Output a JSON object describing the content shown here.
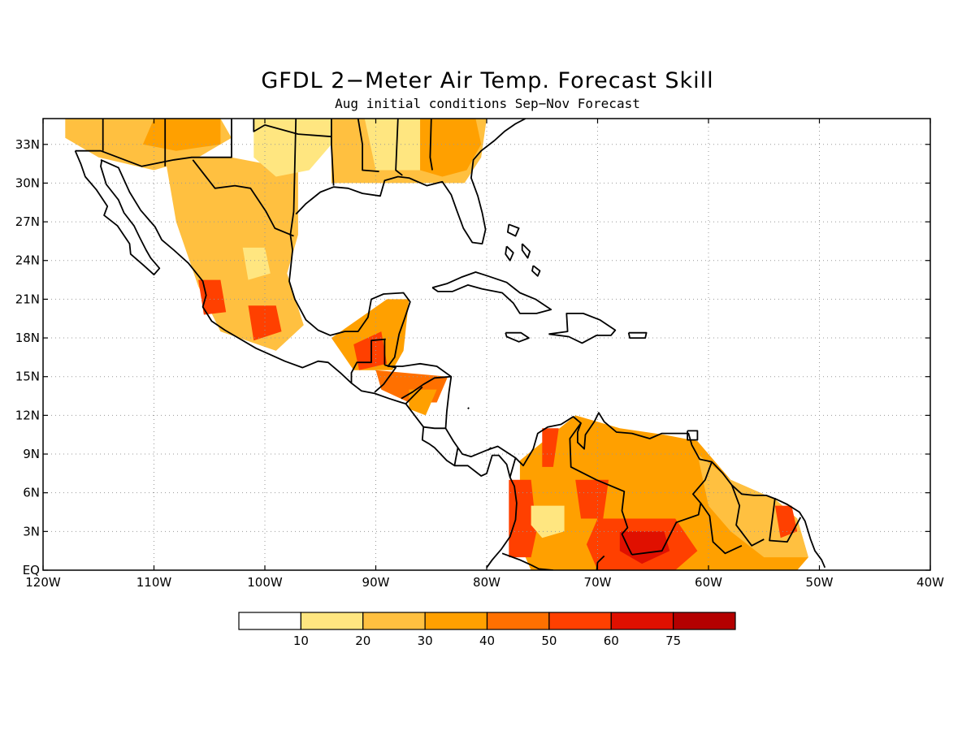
{
  "title": "GFDL 2−Meter Air Temp. Forecast Skill",
  "subtitle": "Aug initial conditions  Sep−Nov Forecast",
  "map": {
    "lon_range": [
      -120,
      -40
    ],
    "lat_range": [
      0,
      35
    ],
    "lon_ticks": [
      {
        "value": -120,
        "label": "120W"
      },
      {
        "value": -110,
        "label": "110W"
      },
      {
        "value": -100,
        "label": "100W"
      },
      {
        "value": -90,
        "label": "90W"
      },
      {
        "value": -80,
        "label": "80W"
      },
      {
        "value": -70,
        "label": "70W"
      },
      {
        "value": -60,
        "label": "60W"
      },
      {
        "value": -50,
        "label": "50W"
      },
      {
        "value": -40,
        "label": "40W"
      }
    ],
    "lat_ticks": [
      {
        "value": 0,
        "label": "EQ"
      },
      {
        "value": 3,
        "label": "3N"
      },
      {
        "value": 6,
        "label": "6N"
      },
      {
        "value": 9,
        "label": "9N"
      },
      {
        "value": 12,
        "label": "12N"
      },
      {
        "value": 15,
        "label": "15N"
      },
      {
        "value": 18,
        "label": "18N"
      },
      {
        "value": 21,
        "label": "21N"
      },
      {
        "value": 24,
        "label": "24N"
      },
      {
        "value": 27,
        "label": "27N"
      },
      {
        "value": 30,
        "label": "30N"
      },
      {
        "value": 33,
        "label": "33N"
      }
    ],
    "grid": "dotted"
  },
  "legend": {
    "labels": [
      "10",
      "20",
      "30",
      "40",
      "50",
      "60",
      "75"
    ],
    "colors": [
      "#ffffff",
      "#ffe680",
      "#ffc040",
      "#ffa000",
      "#ff7000",
      "#ff4000",
      "#e01000",
      "#b40000"
    ]
  },
  "skill_regions": [
    {
      "level": 2,
      "points": [
        [
          -118,
          35
        ],
        [
          -104,
          35
        ],
        [
          -103,
          33.5
        ],
        [
          -106,
          32
        ],
        [
          -110,
          31
        ],
        [
          -115,
          32
        ],
        [
          -118,
          33.5
        ]
      ]
    },
    {
      "level": 3,
      "points": [
        [
          -110,
          35
        ],
        [
          -104,
          35
        ],
        [
          -104,
          33
        ],
        [
          -108,
          32.5
        ],
        [
          -111,
          33
        ]
      ]
    },
    {
      "level": 2,
      "points": [
        [
          -109,
          32
        ],
        [
          -103,
          32
        ],
        [
          -97,
          31
        ],
        [
          -97,
          26
        ],
        [
          -98,
          23
        ],
        [
          -96.5,
          19
        ],
        [
          -99,
          17
        ],
        [
          -104,
          18.5
        ],
        [
          -106,
          22
        ],
        [
          -108,
          27
        ]
      ]
    },
    {
      "level": 1,
      "points": [
        [
          -102,
          25
        ],
        [
          -100,
          25
        ],
        [
          -99.5,
          23
        ],
        [
          -101.5,
          22.5
        ]
      ]
    },
    {
      "level": 5,
      "points": [
        [
          -106,
          22.5
        ],
        [
          -104,
          22.5
        ],
        [
          -103.5,
          20
        ],
        [
          -105.5,
          19.8
        ]
      ]
    },
    {
      "level": 5,
      "points": [
        [
          -101.5,
          20.5
        ],
        [
          -99,
          20.5
        ],
        [
          -98.5,
          18.5
        ],
        [
          -101,
          17.8
        ]
      ]
    },
    {
      "level": 1,
      "points": [
        [
          -101,
          35
        ],
        [
          -94,
          35
        ],
        [
          -94,
          33
        ],
        [
          -96,
          31
        ],
        [
          -99,
          30.5
        ],
        [
          -101,
          32
        ]
      ]
    },
    {
      "level": 2,
      "points": [
        [
          -94,
          35
        ],
        [
          -80,
          35
        ],
        [
          -80.5,
          32
        ],
        [
          -82,
          30
        ],
        [
          -87,
          30
        ],
        [
          -90,
          30
        ],
        [
          -94,
          30
        ]
      ]
    },
    {
      "level": 1,
      "points": [
        [
          -91,
          35
        ],
        [
          -86,
          35
        ],
        [
          -86,
          31
        ],
        [
          -90,
          31
        ]
      ]
    },
    {
      "level": 3,
      "points": [
        [
          -86,
          35
        ],
        [
          -81,
          35
        ],
        [
          -80.5,
          33
        ],
        [
          -81.8,
          31
        ],
        [
          -84,
          30.5
        ],
        [
          -86,
          31
        ]
      ]
    },
    {
      "level": 3,
      "points": [
        [
          -94,
          18
        ],
        [
          -89,
          21
        ],
        [
          -87,
          21
        ],
        [
          -87.5,
          17
        ],
        [
          -88.5,
          15.5
        ],
        [
          -92,
          15.5
        ]
      ]
    },
    {
      "level": 5,
      "points": [
        [
          -92,
          17.5
        ],
        [
          -89.5,
          18.5
        ],
        [
          -89,
          16
        ],
        [
          -91.5,
          15.5
        ]
      ]
    },
    {
      "level": 4,
      "points": [
        [
          -90,
          15.5
        ],
        [
          -83.5,
          15
        ],
        [
          -84.5,
          13
        ],
        [
          -87,
          13
        ],
        [
          -89.5,
          14
        ]
      ]
    },
    {
      "level": 3,
      "points": [
        [
          -87,
          14
        ],
        [
          -84.5,
          14
        ],
        [
          -85.5,
          12
        ],
        [
          -87,
          12.5
        ]
      ]
    },
    {
      "level": 3,
      "points": [
        [
          -77,
          8.5
        ],
        [
          -72,
          12
        ],
        [
          -68,
          11
        ],
        [
          -64,
          10.5
        ],
        [
          -61,
          10
        ],
        [
          -58,
          7
        ],
        [
          -54,
          5.5
        ],
        [
          -52,
          4
        ],
        [
          -51,
          1
        ],
        [
          -52,
          0
        ],
        [
          -76,
          0
        ],
        [
          -77,
          2
        ]
      ]
    },
    {
      "level": 2,
      "points": [
        [
          -61,
          9
        ],
        [
          -58,
          7
        ],
        [
          -54,
          5.5
        ],
        [
          -52,
          4
        ],
        [
          -51,
          1
        ],
        [
          -55,
          1
        ],
        [
          -58,
          3
        ],
        [
          -60,
          5
        ]
      ]
    },
    {
      "level": 5,
      "points": [
        [
          -78,
          7
        ],
        [
          -76,
          7
        ],
        [
          -75.5,
          3
        ],
        [
          -76,
          1
        ],
        [
          -78,
          1
        ]
      ]
    },
    {
      "level": 5,
      "points": [
        [
          -75,
          11
        ],
        [
          -73.5,
          11
        ],
        [
          -74,
          8
        ],
        [
          -75,
          8
        ]
      ]
    },
    {
      "level": 5,
      "points": [
        [
          -72,
          7
        ],
        [
          -69,
          7
        ],
        [
          -69.5,
          4
        ],
        [
          -71.5,
          4
        ]
      ]
    },
    {
      "level": 5,
      "points": [
        [
          -70,
          4
        ],
        [
          -63,
          4
        ],
        [
          -61,
          1.5
        ],
        [
          -63,
          0
        ],
        [
          -70,
          0
        ],
        [
          -71,
          2
        ]
      ]
    },
    {
      "level": 6,
      "points": [
        [
          -68,
          3
        ],
        [
          -64,
          3
        ],
        [
          -63.5,
          1.5
        ],
        [
          -66,
          0.5
        ],
        [
          -68,
          1.5
        ]
      ]
    },
    {
      "level": 1,
      "points": [
        [
          -76,
          5
        ],
        [
          -73,
          5
        ],
        [
          -73,
          3
        ],
        [
          -75,
          2.5
        ],
        [
          -76,
          3.5
        ]
      ]
    },
    {
      "level": 5,
      "points": [
        [
          -54,
          5
        ],
        [
          -52.5,
          5
        ],
        [
          -52,
          3
        ],
        [
          -53.5,
          2.5
        ]
      ]
    }
  ]
}
